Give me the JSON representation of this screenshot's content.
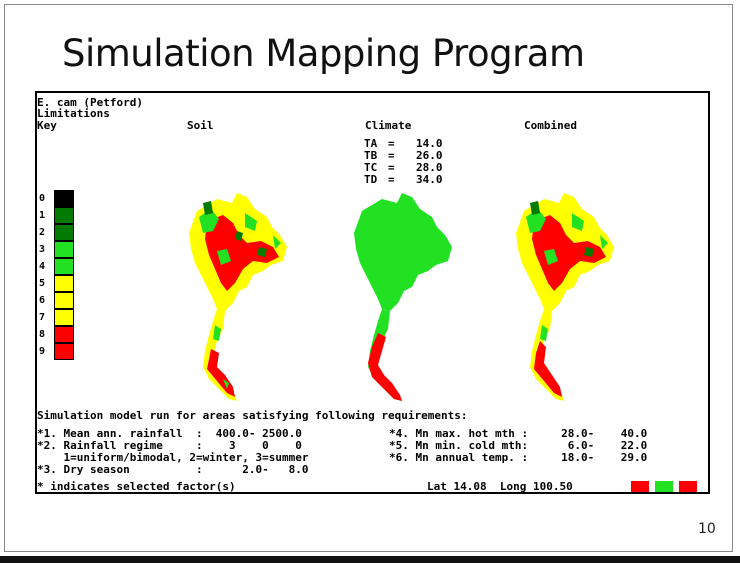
{
  "slide": {
    "title": "Simulation Mapping Program",
    "page_number": "10"
  },
  "screen": {
    "header_lines": [
      "E. cam (Petford)",
      "Limitations",
      "Key"
    ],
    "panel_titles": [
      "Soil",
      "Climate",
      "Combined"
    ],
    "climate_params": [
      {
        "label": "TA",
        "value": "14.0"
      },
      {
        "label": "TB",
        "value": "26.0"
      },
      {
        "label": "TC",
        "value": "28.0"
      },
      {
        "label": "TD",
        "value": "34.0"
      }
    ],
    "key": [
      {
        "label": "0",
        "color": "#000000"
      },
      {
        "label": "1",
        "color": "#007a00"
      },
      {
        "label": "2",
        "color": "#007a00"
      },
      {
        "label": "3",
        "color": "#22e022"
      },
      {
        "label": "4",
        "color": "#22e022"
      },
      {
        "label": "5",
        "color": "#ffff00"
      },
      {
        "label": "6",
        "color": "#ffff00"
      },
      {
        "label": "7",
        "color": "#ffff00"
      },
      {
        "label": "8",
        "color": "#ff0000"
      },
      {
        "label": "9",
        "color": "#ff0000"
      }
    ],
    "requirements_heading": "Simulation model run for areas satisfying following requirements:",
    "left_requirements": [
      "*1. Mean ann. rainfall  :  400.0- 2500.0",
      "*2. Rainfall regime     :    3    0    0",
      "    1=uniform/bimodal, 2=winter, 3=summer",
      "*3. Dry season          :      2.0-   8.0"
    ],
    "right_requirements": [
      "*4. Mn max. hot mth :     28.0-    40.0",
      "*5. Mn min. cold mth:      6.0-    22.0",
      "*6. Mn annual temp. :     18.0-    29.0"
    ],
    "footer_note": "* indicates selected factor(s)",
    "coordinates": "Lat 14.08  Long 100.50",
    "status_colors": [
      "#ff0000",
      "#22e022",
      "#ff0000"
    ]
  }
}
